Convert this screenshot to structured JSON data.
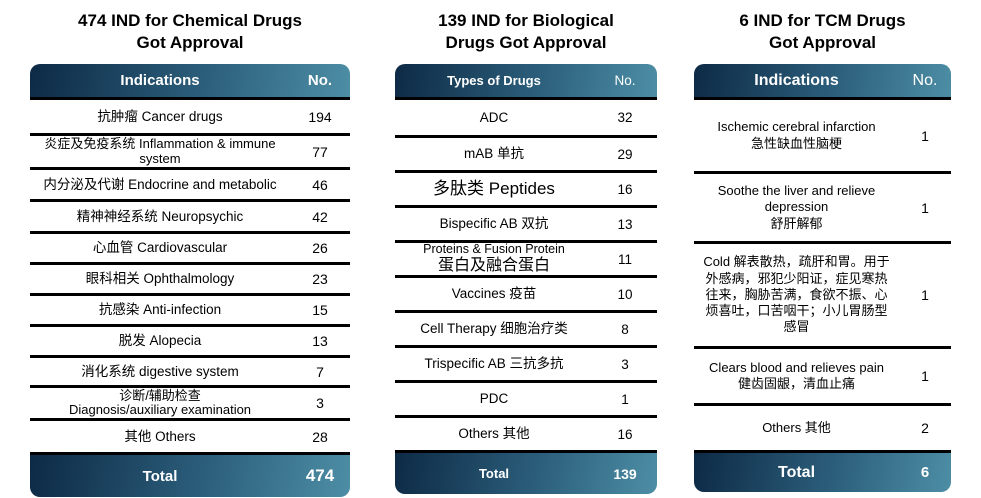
{
  "colors": {
    "background": "#ffffff",
    "header_gradient_start": "#0d2a45",
    "header_gradient_mid": "#2c5f7c",
    "header_gradient_end": "#4d8ea5",
    "divider": "#000000",
    "header_text": "#ffffff",
    "body_text": "#000000"
  },
  "tables": [
    {
      "title_line1": "474 IND for Chemical Drugs",
      "title_line2": "Got Approval",
      "columns": {
        "label": "Indications",
        "no": "No."
      },
      "rows": [
        {
          "label": "抗肿瘤 Cancer drugs",
          "no": "194"
        },
        {
          "label": "炎症及免疫系统 Inflammation & immune system",
          "no": "77"
        },
        {
          "label": "内分泌及代谢 Endocrine and metabolic",
          "no": "46"
        },
        {
          "label": "精神神经系统 Neuropsychic",
          "no": "42"
        },
        {
          "label": "心血管 Cardiovascular",
          "no": "26"
        },
        {
          "label": "眼科相关 Ophthalmology",
          "no": "23"
        },
        {
          "label": "抗感染 Anti-infection",
          "no": "15"
        },
        {
          "label": "脱发 Alopecia",
          "no": "13"
        },
        {
          "label": "消化系统 digestive system",
          "no": "7"
        },
        {
          "label": "诊断/辅助检查",
          "label2": "Diagnosis/auxiliary examination",
          "no": "3"
        },
        {
          "label": "其他 Others",
          "no": "28"
        }
      ],
      "total": {
        "label": "Total",
        "value": "474"
      }
    },
    {
      "title_line1": "139 IND for Biological",
      "title_line2": "Drugs Got Approval",
      "columns": {
        "label": "Types of Drugs",
        "no": "No."
      },
      "rows": [
        {
          "label": "ADC",
          "no": "32"
        },
        {
          "label": "mAB 单抗",
          "no": "29"
        },
        {
          "label": "多肽类 Peptides",
          "no": "16"
        },
        {
          "label": "Bispecific AB 双抗",
          "no": "13"
        },
        {
          "label": "Proteins & Fusion Protein",
          "label2": "蛋白及融合蛋白",
          "no": "11"
        },
        {
          "label": "Vaccines 疫苗",
          "no": "10"
        },
        {
          "label": "Cell Therapy 细胞治疗类",
          "no": "8"
        },
        {
          "label": "Trispecific AB 三抗多抗",
          "no": "3"
        },
        {
          "label": "PDC",
          "no": "1"
        },
        {
          "label": "Others 其他",
          "no": "16"
        }
      ],
      "total": {
        "label": "Total",
        "value": "139"
      }
    },
    {
      "title_line1": "6 IND for TCM Drugs",
      "title_line2": "Got Approval",
      "columns": {
        "label": "Indications",
        "no": "No."
      },
      "rows": [
        {
          "label": "Ischemic cerebral infarction",
          "label2": "急性缺血性脑梗",
          "no": "1"
        },
        {
          "label": "Soothe the liver and relieve depression",
          "label2": "舒肝解郁",
          "no": "1"
        },
        {
          "label": "Cold 解表散热，疏肝和胃。用于外感病，邪犯少阳证，症见寒热往来，胸胁苦满，食欲不振、心烦喜吐，口苦咽干；小儿胃肠型感冒",
          "no": "1"
        },
        {
          "label": "Clears blood and relieves pain",
          "label2": "健齿固龈，清血止痛",
          "no": "1"
        },
        {
          "label": "Others 其他",
          "no": "2"
        }
      ],
      "total": {
        "label": "Total",
        "value": "6"
      }
    }
  ]
}
